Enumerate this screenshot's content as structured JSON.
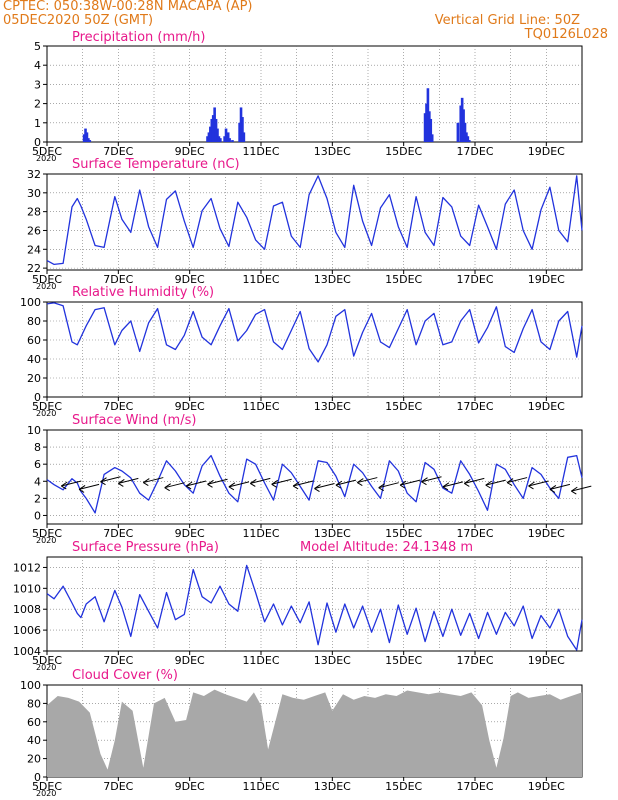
{
  "header": {
    "line1": "CPTEC:  050:38W-00:28N   MACAPA (AP)",
    "line2": "05DEC2020 50Z (GMT)",
    "grid_note": "Vertical Grid Line: 50Z",
    "code": "TQ0126L028",
    "model_altitude": "Model Altitude: 24.1348 m"
  },
  "colors": {
    "header": "#e07a1a",
    "panel_title": "#e8198b",
    "series": "#2233dd",
    "cloud_fill": "#a8a8a8",
    "grid": "#777777"
  },
  "x_axis": {
    "ticks": [
      "5DEC",
      "7DEC",
      "9DEC",
      "11DEC",
      "13DEC",
      "15DEC",
      "17DEC",
      "19DEC"
    ],
    "tick_days": [
      5,
      7,
      9,
      11,
      13,
      15,
      17,
      19
    ],
    "start_day": 5,
    "end_day": 20,
    "year_fragment": "2020"
  },
  "chart_data": [
    {
      "type": "bar",
      "title": "Precipitation (mm/h)",
      "ylim": [
        0,
        5
      ],
      "yticks": [
        0,
        1,
        2,
        3,
        4,
        5
      ],
      "x": [
        6.04,
        6.08,
        6.12,
        6.16,
        6.2,
        9.5,
        9.54,
        9.58,
        9.62,
        9.66,
        9.7,
        9.74,
        9.78,
        9.82,
        9.86,
        9.98,
        10.02,
        10.08,
        10.12,
        10.2,
        10.4,
        10.44,
        10.48,
        10.52,
        15.6,
        15.64,
        15.68,
        15.72,
        15.76,
        15.8,
        16.52,
        16.6,
        16.64,
        16.68,
        16.72,
        16.76,
        16.8,
        16.84
      ],
      "values": [
        0.4,
        0.7,
        0.5,
        0.2,
        0.1,
        0.3,
        0.5,
        0.8,
        1.2,
        1.4,
        1.8,
        1.2,
        0.7,
        0.3,
        0.2,
        0.3,
        0.7,
        0.5,
        0.2,
        0.1,
        1.0,
        1.8,
        1.3,
        0.5,
        1.5,
        2.0,
        2.8,
        1.6,
        1.2,
        0.4,
        1.0,
        1.9,
        2.3,
        1.7,
        1.0,
        0.5,
        0.3,
        0.1
      ]
    },
    {
      "type": "line",
      "title": "Surface Temperature (nC)",
      "ylim": [
        21.8,
        32
      ],
      "yticks": [
        22,
        24,
        26,
        28,
        30,
        32
      ],
      "x": [
        5.0,
        5.2,
        5.45,
        5.7,
        5.85,
        5.95,
        6.1,
        6.35,
        6.6,
        6.9,
        7.1,
        7.35,
        7.6,
        7.85,
        8.1,
        8.35,
        8.6,
        8.85,
        9.1,
        9.35,
        9.6,
        9.85,
        10.1,
        10.35,
        10.6,
        10.85,
        11.1,
        11.35,
        11.6,
        11.85,
        12.1,
        12.35,
        12.6,
        12.85,
        13.1,
        13.35,
        13.6,
        13.85,
        14.1,
        14.35,
        14.6,
        14.85,
        15.1,
        15.35,
        15.6,
        15.85,
        16.1,
        16.35,
        16.6,
        16.85,
        17.1,
        17.35,
        17.6,
        17.85,
        18.1,
        18.35,
        18.6,
        18.85,
        19.1,
        19.35,
        19.6,
        19.85,
        20.0
      ],
      "series": [
        {
          "values": [
            22.8,
            22.4,
            22.5,
            28.5,
            29.4,
            28.6,
            27.2,
            24.4,
            24.2,
            29.6,
            27.2,
            25.8,
            30.3,
            26.4,
            24.2,
            29.3,
            30.2,
            27.0,
            24.2,
            28.1,
            29.4,
            26.2,
            24.3,
            29.0,
            27.4,
            25.0,
            24.0,
            28.6,
            29.0,
            25.4,
            24.2,
            29.8,
            31.8,
            29.4,
            25.8,
            24.2,
            30.8,
            27.0,
            24.4,
            28.4,
            29.8,
            26.4,
            24.2,
            29.6,
            25.8,
            24.4,
            29.5,
            28.5,
            25.4,
            24.4,
            28.7,
            26.4,
            24.0,
            28.8,
            30.3,
            26.0,
            24.0,
            28.2,
            30.6,
            26.0,
            24.8,
            31.8,
            26.0
          ]
        }
      ]
    },
    {
      "type": "line",
      "title": "Relative Humidity (%)",
      "ylim": [
        0,
        100
      ],
      "yticks": [
        0,
        20,
        40,
        60,
        80,
        100
      ],
      "x": [
        5.0,
        5.2,
        5.45,
        5.7,
        5.85,
        5.95,
        6.1,
        6.35,
        6.6,
        6.9,
        7.1,
        7.35,
        7.6,
        7.85,
        8.1,
        8.35,
        8.6,
        8.85,
        9.1,
        9.35,
        9.6,
        9.85,
        10.1,
        10.35,
        10.6,
        10.85,
        11.1,
        11.35,
        11.6,
        11.85,
        12.1,
        12.35,
        12.6,
        12.85,
        13.1,
        13.35,
        13.6,
        13.85,
        14.1,
        14.35,
        14.6,
        14.85,
        15.1,
        15.35,
        15.6,
        15.85,
        16.1,
        16.35,
        16.6,
        16.85,
        17.1,
        17.35,
        17.6,
        17.85,
        18.1,
        18.35,
        18.6,
        18.85,
        19.1,
        19.35,
        19.6,
        19.85,
        20.0
      ],
      "series": [
        {
          "values": [
            98,
            99,
            96,
            58,
            55,
            63,
            75,
            92,
            94,
            55,
            70,
            80,
            48,
            78,
            93,
            55,
            50,
            65,
            90,
            63,
            55,
            75,
            93,
            59,
            70,
            87,
            92,
            58,
            50,
            70,
            90,
            51,
            37,
            55,
            85,
            92,
            43,
            68,
            88,
            58,
            52,
            72,
            92,
            55,
            80,
            88,
            55,
            58,
            80,
            92,
            57,
            73,
            95,
            53,
            47,
            72,
            92,
            58,
            50,
            80,
            90,
            42,
            75
          ]
        }
      ]
    },
    {
      "type": "line",
      "title": "Surface Wind (m/s)",
      "ylim": [
        -1,
        10
      ],
      "yticks": [
        0,
        2,
        4,
        6,
        8,
        10
      ],
      "x": [
        5.0,
        5.2,
        5.45,
        5.7,
        5.85,
        5.95,
        6.1,
        6.35,
        6.6,
        6.9,
        7.1,
        7.35,
        7.6,
        7.85,
        8.1,
        8.35,
        8.6,
        8.85,
        9.1,
        9.35,
        9.6,
        9.85,
        10.1,
        10.35,
        10.6,
        10.85,
        11.1,
        11.35,
        11.6,
        11.85,
        12.1,
        12.35,
        12.6,
        12.85,
        13.1,
        13.35,
        13.6,
        13.85,
        14.1,
        14.35,
        14.6,
        14.85,
        15.1,
        15.35,
        15.6,
        15.85,
        16.1,
        16.35,
        16.6,
        16.85,
        17.1,
        17.35,
        17.6,
        17.85,
        18.1,
        18.35,
        18.6,
        18.85,
        19.1,
        19.35,
        19.6,
        19.85,
        20.0
      ],
      "series": [
        {
          "values": [
            4.2,
            3.6,
            3.0,
            4.3,
            3.8,
            2.8,
            2.0,
            0.3,
            4.8,
            5.6,
            5.2,
            4.4,
            2.6,
            1.8,
            4.0,
            6.4,
            5.2,
            3.6,
            2.6,
            5.8,
            7.0,
            4.6,
            2.6,
            1.6,
            6.6,
            6.0,
            3.8,
            1.8,
            6.0,
            5.0,
            3.4,
            1.8,
            6.4,
            6.2,
            4.6,
            2.2,
            6.0,
            5.0,
            3.4,
            2.0,
            6.4,
            5.2,
            2.6,
            1.6,
            6.2,
            5.4,
            3.2,
            2.6,
            6.4,
            4.8,
            2.8,
            0.6,
            6.0,
            5.4,
            3.6,
            2.0,
            5.6,
            4.8,
            3.2,
            2.0,
            6.8,
            7.0,
            4.4
          ]
        }
      ],
      "wind_arrows_x": [
        5.4,
        5.9,
        6.5,
        7.0,
        7.7,
        8.3,
        8.9,
        9.5,
        10.1,
        10.7,
        11.3,
        11.9,
        12.5,
        13.1,
        13.7,
        14.3,
        14.9,
        15.5,
        16.1,
        16.7,
        17.3,
        17.9,
        18.5,
        19.1,
        19.7
      ],
      "wind_arrows_y": [
        3.8,
        3.4,
        4.3,
        4.1,
        4.2,
        3.6,
        3.8,
        4.0,
        3.7,
        4.1,
        4.0,
        3.8,
        3.5,
        3.9,
        4.2,
        3.6,
        3.9,
        4.3,
        3.7,
        4.1,
        3.9,
        4.2,
        3.8,
        3.4,
        3.2
      ]
    },
    {
      "type": "line",
      "title": "Surface Pressure (hPa)",
      "ylim": [
        1004,
        1013
      ],
      "yticks": [
        1004,
        1006,
        1008,
        1010,
        1012
      ],
      "x": [
        5.0,
        5.2,
        5.45,
        5.7,
        5.85,
        5.95,
        6.1,
        6.35,
        6.6,
        6.9,
        7.1,
        7.35,
        7.6,
        7.85,
        8.1,
        8.35,
        8.6,
        8.85,
        9.1,
        9.35,
        9.6,
        9.85,
        10.1,
        10.35,
        10.6,
        10.85,
        11.1,
        11.35,
        11.6,
        11.85,
        12.1,
        12.35,
        12.6,
        12.85,
        13.1,
        13.35,
        13.6,
        13.85,
        14.1,
        14.35,
        14.6,
        14.85,
        15.1,
        15.35,
        15.6,
        15.85,
        16.1,
        16.35,
        16.6,
        16.85,
        17.1,
        17.35,
        17.6,
        17.85,
        18.1,
        18.35,
        18.6,
        18.85,
        19.1,
        19.35,
        19.6,
        19.85,
        20.0
      ],
      "series": [
        {
          "values": [
            1009.5,
            1009.0,
            1010.2,
            1008.6,
            1007.6,
            1007.2,
            1008.5,
            1009.2,
            1006.8,
            1009.8,
            1008.2,
            1005.4,
            1009.4,
            1007.8,
            1006.2,
            1009.6,
            1007.0,
            1007.5,
            1011.8,
            1009.2,
            1008.6,
            1010.2,
            1008.5,
            1007.8,
            1012.2,
            1009.6,
            1006.8,
            1008.5,
            1006.5,
            1008.3,
            1006.7,
            1008.7,
            1004.6,
            1008.6,
            1005.8,
            1008.5,
            1006.2,
            1008.3,
            1005.8,
            1008.0,
            1004.8,
            1008.4,
            1005.6,
            1008.1,
            1004.9,
            1007.8,
            1005.4,
            1008.0,
            1005.5,
            1007.6,
            1005.2,
            1007.7,
            1005.6,
            1007.7,
            1006.4,
            1008.3,
            1005.2,
            1007.4,
            1006.2,
            1008.0,
            1005.4,
            1004.1,
            1007.0
          ]
        }
      ]
    },
    {
      "type": "area",
      "title": "Cloud Cover (%)",
      "ylim": [
        0,
        100
      ],
      "yticks": [
        0,
        20,
        40,
        60,
        80,
        100
      ],
      "x": [
        5.0,
        5.3,
        5.6,
        5.9,
        6.2,
        6.5,
        6.7,
        6.9,
        7.1,
        7.4,
        7.7,
        8.0,
        8.3,
        8.6,
        8.9,
        9.1,
        9.4,
        9.7,
        10.0,
        10.3,
        10.6,
        10.8,
        11.0,
        11.2,
        11.4,
        11.6,
        11.9,
        12.2,
        12.5,
        12.8,
        13.0,
        13.3,
        13.6,
        13.9,
        14.2,
        14.5,
        14.8,
        15.1,
        15.4,
        15.7,
        16.0,
        16.3,
        16.6,
        16.9,
        17.2,
        17.4,
        17.6,
        17.8,
        18.0,
        18.2,
        18.5,
        18.8,
        19.1,
        19.4,
        19.7,
        20.0
      ],
      "series": [
        {
          "values": [
            78,
            88,
            86,
            82,
            70,
            25,
            8,
            40,
            82,
            72,
            10,
            80,
            86,
            60,
            62,
            92,
            88,
            95,
            90,
            86,
            82,
            92,
            78,
            30,
            60,
            90,
            86,
            84,
            88,
            92,
            72,
            90,
            84,
            88,
            86,
            90,
            88,
            94,
            92,
            90,
            92,
            90,
            88,
            92,
            78,
            40,
            10,
            42,
            88,
            92,
            86,
            88,
            90,
            84,
            88,
            92
          ]
        }
      ]
    }
  ],
  "panels": [
    {
      "title": "Precipitation (mm/h)"
    },
    {
      "title": "Surface Temperature (nC)"
    },
    {
      "title": "Relative Humidity (%)"
    },
    {
      "title": "Surface Wind (m/s)"
    },
    {
      "title": "Surface Pressure (hPa)"
    },
    {
      "title": "Cloud Cover (%)"
    }
  ]
}
